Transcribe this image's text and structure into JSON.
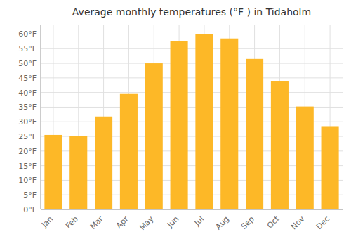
{
  "chart_data": {
    "type": "bar",
    "title": "Average monthly temperatures (°F ) in Tidaholm",
    "categories": [
      "Jan",
      "Feb",
      "Mar",
      "Apr",
      "May",
      "Jun",
      "Jul",
      "Aug",
      "Sep",
      "Oct",
      "Nov",
      "Dec"
    ],
    "values": [
      25.5,
      25.2,
      31.8,
      39.5,
      50.0,
      57.5,
      60.0,
      58.5,
      51.5,
      44.0,
      35.2,
      28.5
    ],
    "color": "#FDB827",
    "ylim": [
      0,
      63
    ],
    "yticks": [
      {
        "value": 0,
        "label": "0°F"
      },
      {
        "value": 5,
        "label": "5°F"
      },
      {
        "value": 10,
        "label": "10°F"
      },
      {
        "value": 15,
        "label": "15°F"
      },
      {
        "value": 20,
        "label": "20°F"
      },
      {
        "value": 25,
        "label": "25°F"
      },
      {
        "value": 30,
        "label": "30°F"
      },
      {
        "value": 35,
        "label": "35°F"
      },
      {
        "value": 40,
        "label": "40°F"
      },
      {
        "value": 45,
        "label": "45°F"
      },
      {
        "value": 50,
        "label": "50°F"
      },
      {
        "value": 55,
        "label": "55°F"
      },
      {
        "value": 60,
        "label": "60°F"
      }
    ],
    "grid": true
  }
}
